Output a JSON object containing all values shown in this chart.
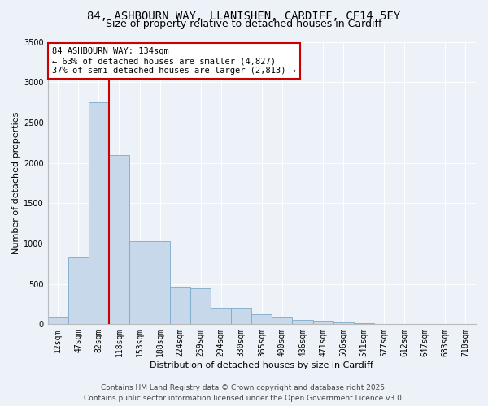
{
  "title_line1": "84, ASHBOURN WAY, LLANISHEN, CARDIFF, CF14 5EY",
  "title_line2": "Size of property relative to detached houses in Cardiff",
  "xlabel": "Distribution of detached houses by size in Cardiff",
  "ylabel": "Number of detached properties",
  "categories": [
    "12sqm",
    "47sqm",
    "82sqm",
    "118sqm",
    "153sqm",
    "188sqm",
    "224sqm",
    "259sqm",
    "294sqm",
    "330sqm",
    "365sqm",
    "400sqm",
    "436sqm",
    "471sqm",
    "506sqm",
    "541sqm",
    "577sqm",
    "612sqm",
    "647sqm",
    "683sqm",
    "718sqm"
  ],
  "values": [
    80,
    830,
    2750,
    2100,
    1030,
    1030,
    460,
    450,
    200,
    200,
    120,
    80,
    55,
    40,
    20,
    10,
    5,
    3,
    2,
    1,
    1
  ],
  "bar_color": "#c8d8eb",
  "bar_edge_color": "#7aaac8",
  "vline_x_pos": 2.5,
  "vline_color": "#cc0000",
  "ylim": [
    0,
    3500
  ],
  "yticks": [
    0,
    500,
    1000,
    1500,
    2000,
    2500,
    3000,
    3500
  ],
  "annotation_text": "84 ASHBOURN WAY: 134sqm\n← 63% of detached houses are smaller (4,827)\n37% of semi-detached houses are larger (2,813) →",
  "annotation_box_facecolor": "#ffffff",
  "annotation_box_edgecolor": "#cc0000",
  "footer_line1": "Contains HM Land Registry data © Crown copyright and database right 2025.",
  "footer_line2": "Contains public sector information licensed under the Open Government Licence v3.0.",
  "bg_color": "#edf2f8",
  "plot_bg_color": "#edf2f8",
  "title1_fontsize": 10,
  "title2_fontsize": 9,
  "ylabel_fontsize": 8,
  "xlabel_fontsize": 8,
  "tick_fontsize": 7,
  "annot_fontsize": 7.5,
  "footer_fontsize": 6.5
}
